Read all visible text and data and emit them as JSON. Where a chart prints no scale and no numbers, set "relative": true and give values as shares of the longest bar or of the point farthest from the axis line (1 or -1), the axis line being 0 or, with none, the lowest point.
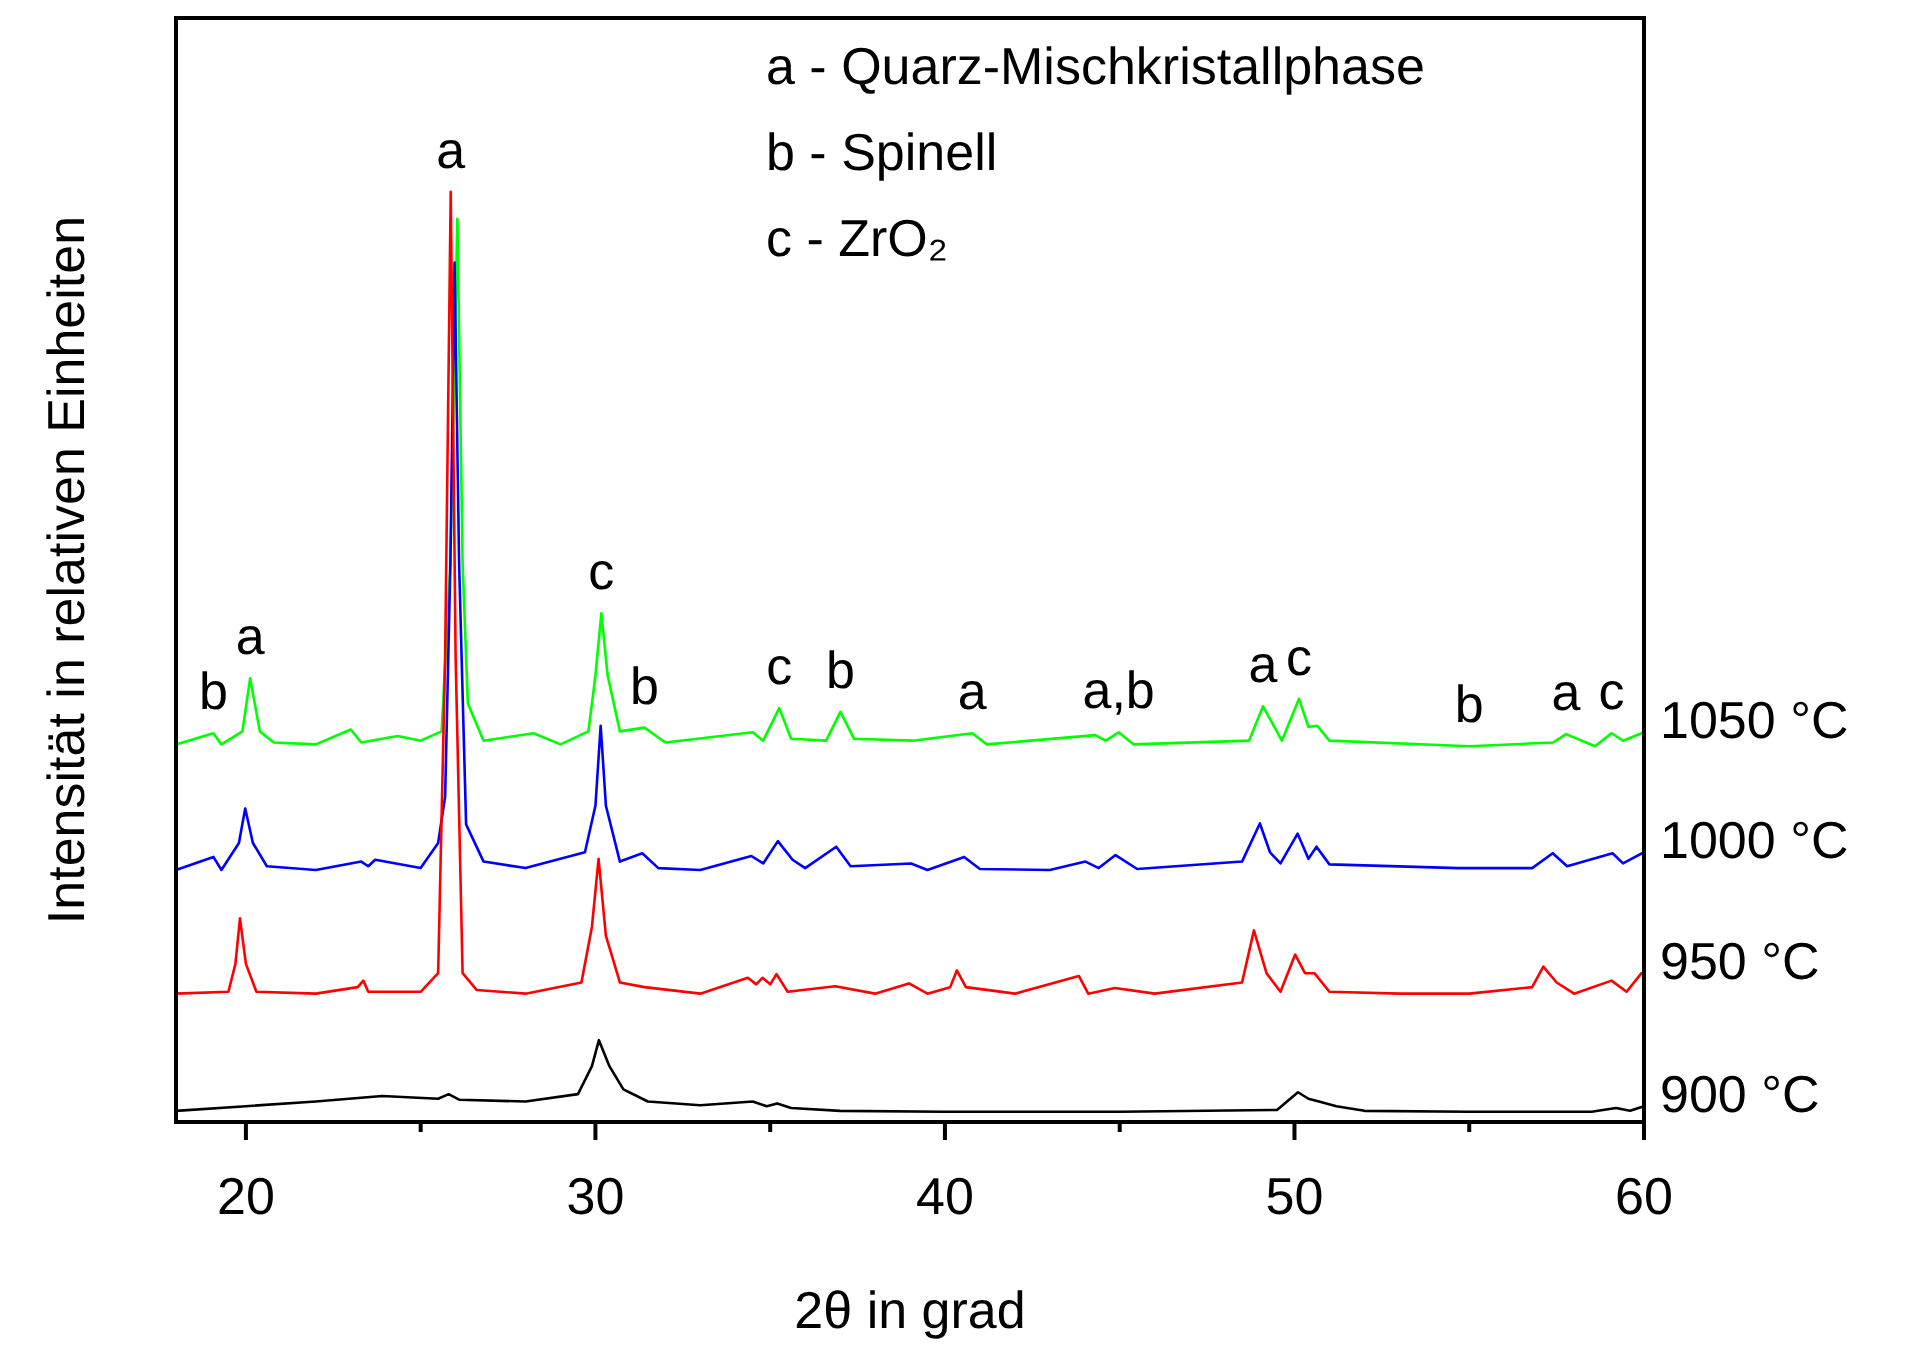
{
  "chart_data": {
    "type": "line",
    "relative": true,
    "xlabel": "2θ in grad",
    "ylabel": "Intensität in relativen Einheiten",
    "legend": false,
    "grid": false,
    "marker": "none",
    "line_style": "solid",
    "xlim": [
      18,
      60
    ],
    "xticks": [
      20,
      {
        "value": 25,
        "label": null
      },
      30,
      {
        "value": 35,
        "label": null
      },
      40,
      {
        "value": 45,
        "label": null
      },
      50,
      {
        "value": 55,
        "label": null
      },
      60
    ],
    "series": [
      {
        "name": "900 °C",
        "color": "#000000",
        "x": [
          18,
          20,
          22,
          23.9,
          25.5,
          25.8,
          26.1,
          28,
          29.5,
          29.9,
          30.1,
          30.4,
          30.8,
          31.5,
          33,
          34.5,
          34.9,
          35.2,
          35.6,
          37,
          40,
          45,
          49.5,
          50.1,
          50.4,
          50.7,
          51.2,
          52,
          55,
          58.5,
          59.2,
          59.6,
          60
        ],
        "values": [
          0.012,
          0.017,
          0.022,
          0.028,
          0.025,
          0.03,
          0.024,
          0.022,
          0.03,
          0.06,
          0.088,
          0.06,
          0.035,
          0.022,
          0.018,
          0.022,
          0.017,
          0.02,
          0.015,
          0.012,
          0.011,
          0.011,
          0.013,
          0.032,
          0.025,
          0.022,
          0.017,
          0.012,
          0.011,
          0.011,
          0.015,
          0.012,
          0.017
        ]
      },
      {
        "name": "950 °C",
        "color": "#ff0000",
        "x": [
          18,
          19.5,
          19.7,
          19.83,
          20,
          20.3,
          22,
          23.2,
          23.36,
          23.5,
          25,
          25.5,
          25.7,
          25.86,
          26.0,
          26.2,
          26.6,
          28,
          29.6,
          29.9,
          30.09,
          30.3,
          30.7,
          31.4,
          33,
          34.36,
          34.6,
          34.78,
          35,
          35.18,
          35.5,
          36.86,
          38,
          38.97,
          39.5,
          40.15,
          40.34,
          40.6,
          42,
          43.83,
          44.1,
          44.86,
          46,
          48.5,
          48.84,
          49.2,
          49.6,
          50.02,
          50.3,
          50.57,
          51,
          53,
          55,
          56.8,
          57.12,
          57.5,
          58,
          59.07,
          59.5,
          59.93,
          60
        ],
        "values": [
          0.138,
          0.14,
          0.17,
          0.219,
          0.17,
          0.14,
          0.138,
          0.145,
          0.152,
          0.14,
          0.14,
          0.16,
          0.5,
          1.0,
          0.5,
          0.16,
          0.142,
          0.138,
          0.15,
          0.21,
          0.283,
          0.2,
          0.15,
          0.145,
          0.138,
          0.155,
          0.148,
          0.155,
          0.148,
          0.159,
          0.14,
          0.146,
          0.138,
          0.149,
          0.138,
          0.145,
          0.163,
          0.145,
          0.138,
          0.157,
          0.138,
          0.144,
          0.138,
          0.15,
          0.206,
          0.16,
          0.14,
          0.18,
          0.16,
          0.16,
          0.14,
          0.138,
          0.138,
          0.145,
          0.167,
          0.15,
          0.138,
          0.152,
          0.14,
          0.16,
          0.16
        ]
      },
      {
        "name": "1000 °C",
        "color": "#0000ff",
        "x": [
          18,
          19.07,
          19.3,
          19.8,
          19.98,
          20.2,
          20.6,
          22,
          23.3,
          23.5,
          23.7,
          25,
          25.5,
          25.7,
          25.85,
          25.97,
          26.1,
          26.3,
          26.8,
          28,
          29.7,
          30.0,
          30.15,
          30.3,
          30.7,
          31.34,
          31.8,
          33,
          34.46,
          34.8,
          35.22,
          35.64,
          36,
          36.89,
          37.3,
          39.03,
          39.5,
          40.55,
          41,
          43,
          44.02,
          44.4,
          44.88,
          45.5,
          48.5,
          49.01,
          49.3,
          49.6,
          50.09,
          50.4,
          50.63,
          51,
          54.7,
          56.8,
          57.39,
          57.8,
          59.1,
          59.4,
          59.64,
          60
        ],
        "values": [
          0.271,
          0.285,
          0.271,
          0.3,
          0.337,
          0.3,
          0.275,
          0.271,
          0.28,
          0.275,
          0.282,
          0.273,
          0.3,
          0.35,
          0.6,
          0.924,
          0.6,
          0.32,
          0.28,
          0.273,
          0.29,
          0.34,
          0.426,
          0.34,
          0.28,
          0.289,
          0.273,
          0.271,
          0.286,
          0.278,
          0.302,
          0.282,
          0.273,
          0.296,
          0.275,
          0.278,
          0.271,
          0.285,
          0.272,
          0.271,
          0.28,
          0.273,
          0.287,
          0.272,
          0.28,
          0.321,
          0.29,
          0.278,
          0.31,
          0.283,
          0.296,
          0.277,
          0.273,
          0.273,
          0.289,
          0.275,
          0.289,
          0.278,
          0.283,
          0.29
        ]
      },
      {
        "name": "1050 °C",
        "color": "#00ff00",
        "x": [
          18,
          19.07,
          19.3,
          19.9,
          20.12,
          20.4,
          20.8,
          22,
          23.0,
          23.3,
          24.34,
          25,
          25.6,
          25.85,
          26.05,
          26.2,
          26.35,
          26.8,
          28.23,
          29,
          29.8,
          30.0,
          30.17,
          30.35,
          30.7,
          31.4,
          32,
          34.5,
          34.8,
          35.26,
          35.6,
          36.6,
          37.01,
          37.4,
          39.07,
          40.78,
          41.2,
          44.3,
          44.6,
          44.97,
          45.4,
          48.7,
          49.1,
          49.64,
          50.13,
          50.4,
          50.65,
          51,
          55,
          57.4,
          57.77,
          58.6,
          59.07,
          59.4,
          60
        ],
        "values": [
          0.406,
          0.418,
          0.406,
          0.42,
          0.477,
          0.42,
          0.408,
          0.406,
          0.422,
          0.408,
          0.415,
          0.41,
          0.42,
          0.6,
          0.971,
          0.6,
          0.45,
          0.41,
          0.418,
          0.406,
          0.42,
          0.48,
          0.547,
          0.48,
          0.42,
          0.424,
          0.408,
          0.419,
          0.41,
          0.445,
          0.412,
          0.41,
          0.441,
          0.412,
          0.41,
          0.418,
          0.406,
          0.416,
          0.41,
          0.419,
          0.406,
          0.41,
          0.447,
          0.41,
          0.455,
          0.425,
          0.426,
          0.41,
          0.404,
          0.408,
          0.417,
          0.404,
          0.418,
          0.41,
          0.419
        ]
      }
    ],
    "annotations": [
      "a - Quarz-Mischkristallphase",
      "b - Spinell",
      "c - ZrO₂",
      {
        "text": "a",
        "x": 25.86,
        "y": 1.0
      },
      {
        "text": "b",
        "x": 19.07,
        "y": 0.418
      },
      {
        "text": "a",
        "x": 20.12,
        "y": 0.477
      },
      {
        "text": "c",
        "x": 30.17,
        "y": 0.547
      },
      {
        "text": "b",
        "x": 31.4,
        "y": 0.424
      },
      {
        "text": "c",
        "x": 35.26,
        "y": 0.445
      },
      {
        "text": "b",
        "x": 37.01,
        "y": 0.441
      },
      {
        "text": "a",
        "x": 40.78,
        "y": 0.418
      },
      {
        "text": "a,b",
        "x": 44.97,
        "y": 0.419
      },
      {
        "text": "a",
        "x": 49.1,
        "y": 0.447
      },
      {
        "text": "c",
        "x": 50.13,
        "y": 0.455
      },
      {
        "text": "b",
        "x": 55,
        "y": 0.404
      },
      {
        "text": "a",
        "x": 57.77,
        "y": 0.417
      },
      {
        "text": "c",
        "x": 59.07,
        "y": 0.418
      }
    ]
  }
}
